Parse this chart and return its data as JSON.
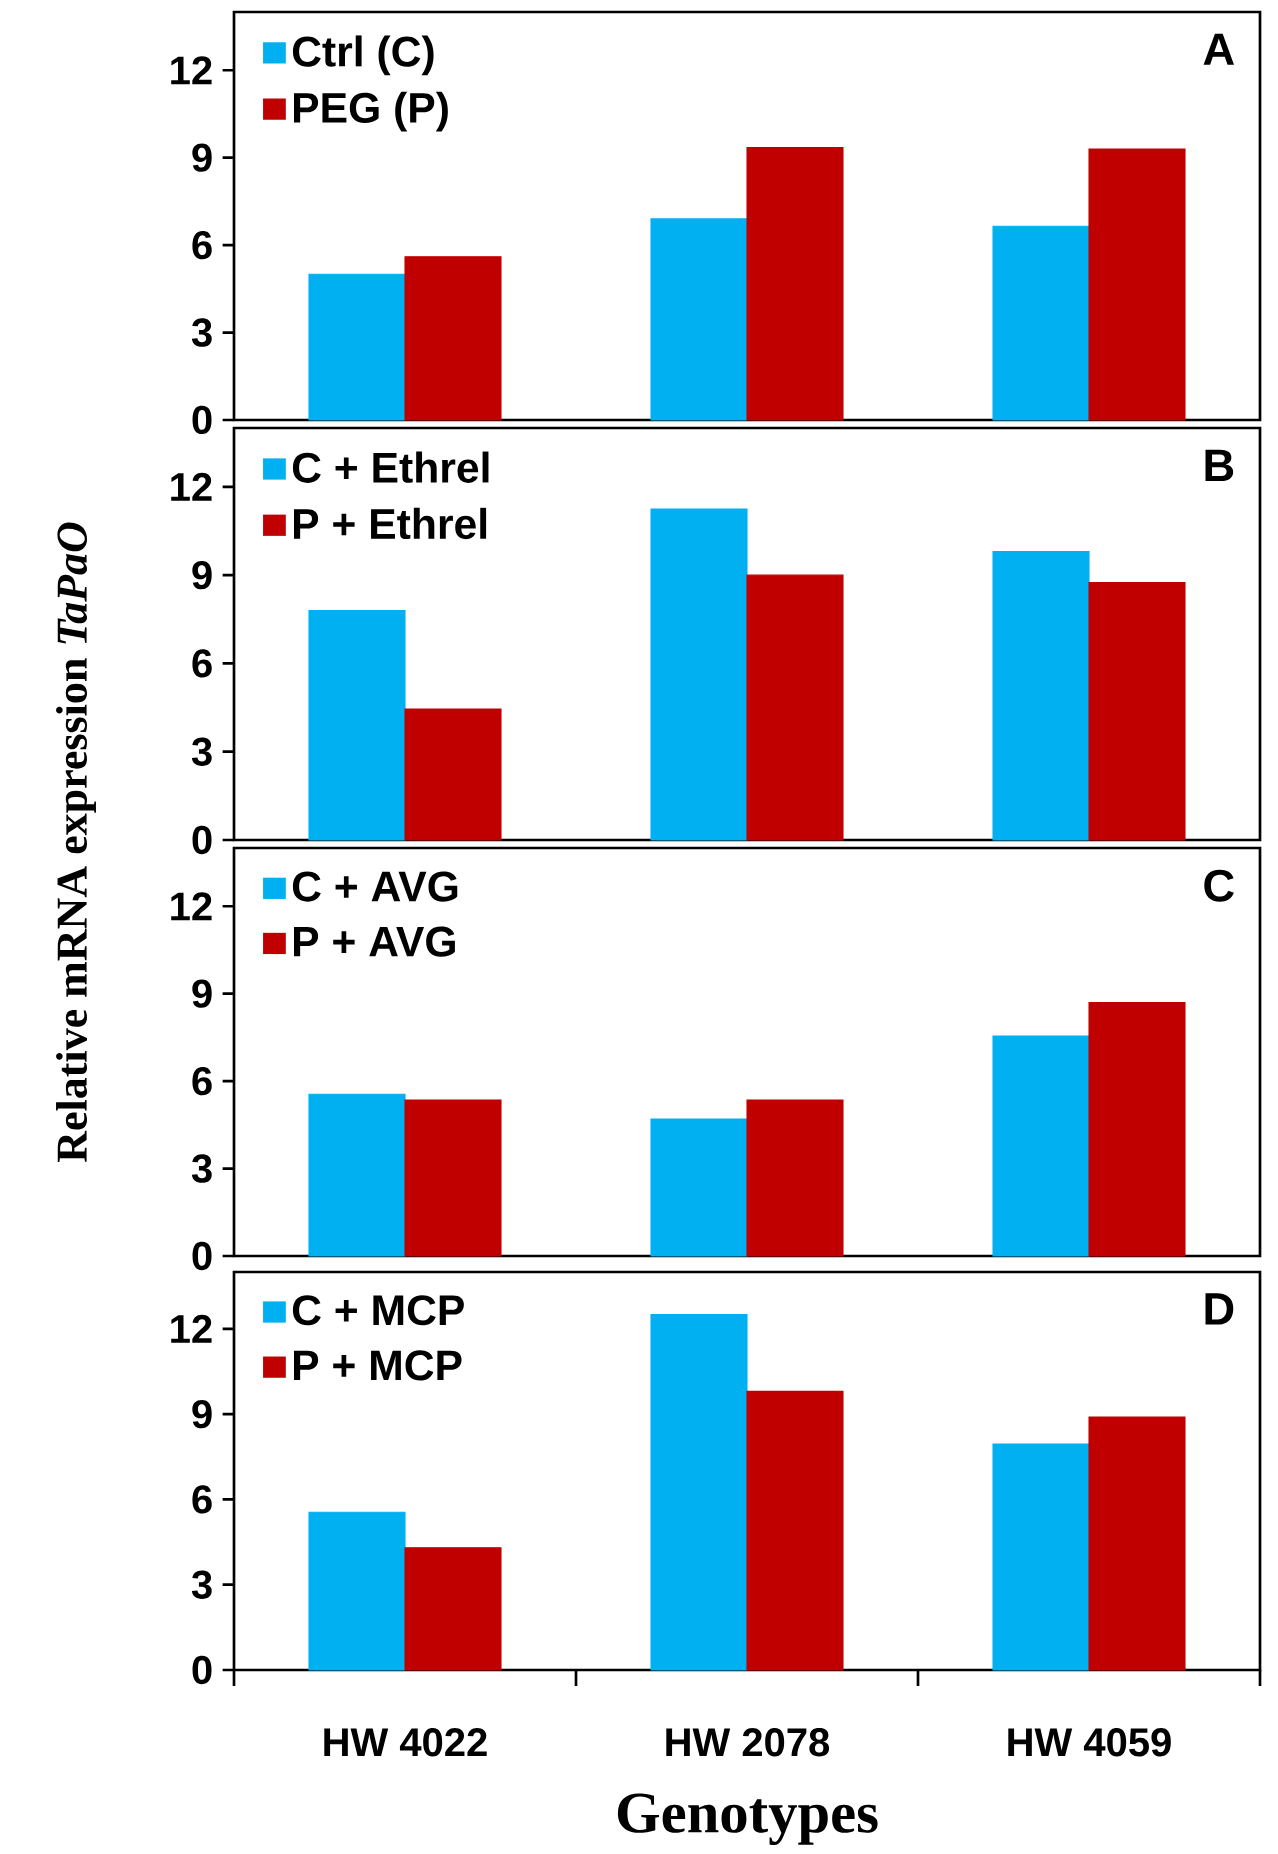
{
  "chart_data": [
    {
      "type": "bar",
      "ylabel": "Relative mRNA expression *TaPaO*",
      "annotations": [
        "A"
      ],
      "ylim": [
        0,
        14
      ],
      "yticks": [
        0,
        3,
        6,
        9,
        12
      ],
      "legend": "top left",
      "tick_labels": "y",
      "series": [
        {
          "name": "Ctrl (C)",
          "color": "#00b0f0",
          "values": [
            5.0,
            6.9,
            6.65
          ]
        },
        {
          "name": "PEG (P)",
          "color": "#c00000",
          "values": [
            5.6,
            9.35,
            9.3
          ]
        }
      ]
    },
    {
      "type": "bar",
      "annotations": [
        "B"
      ],
      "ylim": [
        0,
        14
      ],
      "yticks": [
        0,
        3,
        6,
        9,
        12
      ],
      "legend": "top left",
      "tick_labels": "y",
      "series": [
        {
          "name": "C + Ethrel",
          "color": "#00b0f0",
          "values": [
            7.8,
            11.25,
            9.8
          ]
        },
        {
          "name": "P + Ethrel",
          "color": "#c00000",
          "values": [
            4.45,
            9.0,
            8.75
          ]
        }
      ]
    },
    {
      "type": "bar",
      "annotations": [
        "C"
      ],
      "ylim": [
        0,
        14
      ],
      "yticks": [
        0,
        3,
        6,
        9,
        12
      ],
      "legend": "top left",
      "tick_labels": "y",
      "series": [
        {
          "name": "C + AVG",
          "color": "#00b0f0",
          "values": [
            5.55,
            4.7,
            7.55
          ]
        },
        {
          "name": "P + AVG",
          "color": "#c00000",
          "values": [
            5.35,
            5.35,
            8.7
          ]
        }
      ]
    },
    {
      "type": "bar",
      "categories": [
        "HW 4022",
        "HW 2078",
        "HW 4059"
      ],
      "xlabel": "Genotypes",
      "annotations": [
        "D"
      ],
      "ylim": [
        0,
        14
      ],
      "yticks": [
        0,
        3,
        6,
        9,
        12
      ],
      "legend": "top left",
      "series": [
        {
          "name": "C + MCP",
          "color": "#00b0f0",
          "values": [
            5.55,
            12.5,
            7.95
          ]
        },
        {
          "name": "P + MCP",
          "color": "#c00000",
          "values": [
            4.3,
            9.8,
            8.9
          ]
        }
      ]
    }
  ]
}
